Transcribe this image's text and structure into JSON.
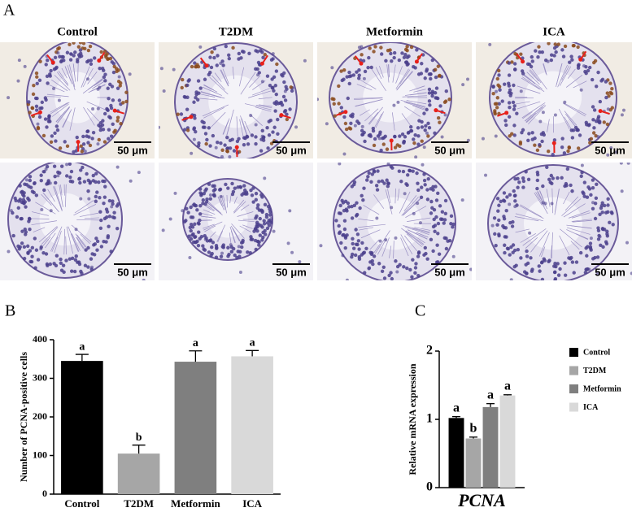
{
  "panel_labels": [
    "A",
    "B",
    "C"
  ],
  "groups": [
    "Control",
    "T2DM",
    "Metformin",
    "ICA"
  ],
  "scale_bar": "50 μm",
  "chart_data": [
    {
      "type": "bar",
      "ylabel": "Number of PCNA-positive cells",
      "categories": [
        "Control",
        "T2DM",
        "Metformin",
        "ICA"
      ],
      "values": [
        345,
        105,
        343,
        357
      ],
      "errors": [
        17,
        22,
        28,
        15
      ],
      "significance": [
        "a",
        "b",
        "a",
        "a"
      ],
      "colors": [
        "#000000",
        "#a6a6a6",
        "#7f7f7f",
        "#d9d9d9"
      ],
      "ylim": [
        0,
        400
      ],
      "yticks": [
        0,
        100,
        200,
        300,
        400
      ]
    },
    {
      "type": "grouped_bar",
      "ylabel": "Relative mRNA expression",
      "categories": [
        "PCNA"
      ],
      "series": [
        {
          "name": "Control",
          "color": "#000000",
          "values": [
            1.02
          ],
          "errors": [
            0.02
          ]
        },
        {
          "name": "T2DM",
          "color": "#a6a6a6",
          "values": [
            0.72
          ],
          "errors": [
            0.02
          ]
        },
        {
          "name": "Metformin",
          "color": "#7f7f7f",
          "values": [
            1.18
          ],
          "errors": [
            0.05
          ]
        },
        {
          "name": "ICA",
          "color": "#d9d9d9",
          "values": [
            1.35
          ],
          "errors": [
            0.01
          ]
        }
      ],
      "significance": [
        "a",
        "b",
        "a",
        "a"
      ],
      "ylim": [
        0,
        2
      ],
      "yticks": [
        0,
        1,
        2
      ],
      "legend": "right"
    }
  ]
}
